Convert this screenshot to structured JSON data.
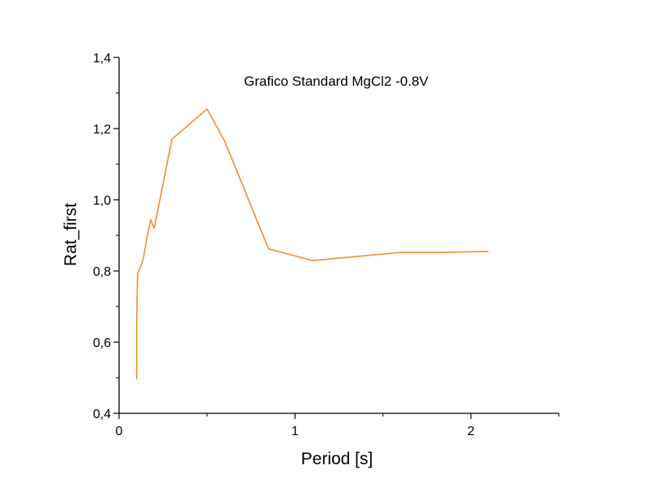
{
  "chart_data": {
    "type": "line",
    "title": "Grafico Standard MgCl2 -0.8V",
    "xlabel": "Period [s]",
    "ylabel": "Rat_first",
    "xlim": [
      0,
      2.5
    ],
    "ylim": [
      0.4,
      1.4
    ],
    "x_ticks": [
      0,
      1,
      2
    ],
    "x_tick_labels": [
      "0",
      "1",
      "2"
    ],
    "y_ticks": [
      0.4,
      0.6,
      0.8,
      1.0,
      1.2,
      1.4
    ],
    "y_tick_labels": [
      "0,4",
      "0,6",
      "0,8",
      "1,0",
      "1,2",
      "1,4"
    ],
    "grid": false,
    "legend": "none",
    "series": [
      {
        "color": "#f28e2b",
        "x": [
          0.1,
          0.1,
          0.105,
          0.11,
          0.13,
          0.14,
          0.15,
          0.16,
          0.17,
          0.18,
          0.19,
          0.2,
          0.3,
          0.5,
          0.6,
          0.85,
          1.1,
          1.6,
          1.85,
          2.1
        ],
        "y": [
          0.495,
          0.65,
          0.79,
          0.8,
          0.82,
          0.84,
          0.87,
          0.9,
          0.92,
          0.945,
          0.93,
          0.92,
          1.17,
          1.255,
          1.165,
          0.862,
          0.829,
          0.852,
          0.852,
          0.855
        ]
      }
    ]
  }
}
